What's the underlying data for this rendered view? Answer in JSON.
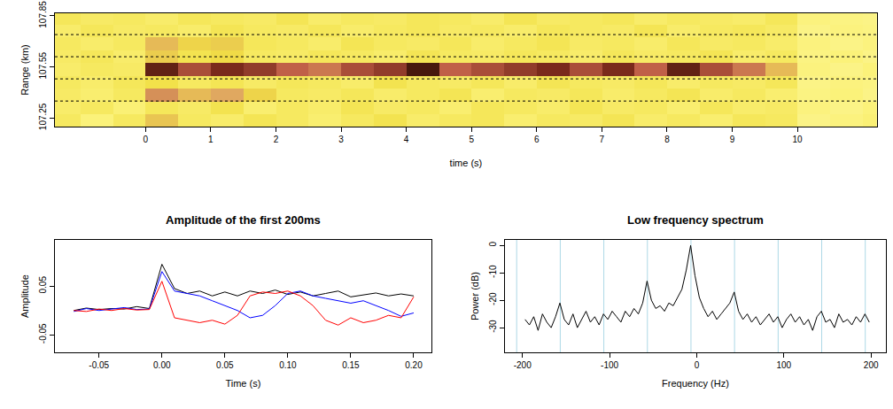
{
  "chart_data": [
    {
      "type": "heatmap",
      "xlabel": "time (s)",
      "ylabel": "Range (km)",
      "x": [
        -1.25,
        -0.75,
        -0.25,
        0.25,
        0.75,
        1.25,
        1.75,
        2.25,
        2.75,
        3.25,
        3.75,
        4.25,
        4.75,
        5.25,
        5.75,
        6.25,
        6.75,
        7.25,
        7.75,
        8.25,
        8.75,
        9.25,
        9.75,
        10.25,
        10.75,
        11.25
      ],
      "y": [
        107.235,
        107.31,
        107.385,
        107.46,
        107.535,
        107.61,
        107.685,
        107.76,
        107.835
      ],
      "cells": [
        [
          0.3,
          0.25,
          0.3,
          0.42,
          0.3,
          0.28,
          0.32,
          0.3,
          0.27,
          0.3,
          0.33,
          0.28,
          0.3,
          0.31,
          0.27,
          0.3,
          0.29,
          0.32,
          0.28,
          0.3,
          0.27,
          0.31,
          0.3,
          0.22,
          0.24,
          0.26
        ],
        [
          0.28,
          0.3,
          0.26,
          0.31,
          0.29,
          0.33,
          0.27,
          0.3,
          0.28,
          0.32,
          0.29,
          0.3,
          0.27,
          0.31,
          0.3,
          0.28,
          0.32,
          0.29,
          0.3,
          0.27,
          0.31,
          0.28,
          0.29,
          0.24,
          0.22,
          0.25
        ],
        [
          0.29,
          0.27,
          0.3,
          0.55,
          0.45,
          0.5,
          0.38,
          0.3,
          0.29,
          0.31,
          0.28,
          0.3,
          0.32,
          0.27,
          0.3,
          0.29,
          0.31,
          0.28,
          0.3,
          0.32,
          0.28,
          0.3,
          0.27,
          0.23,
          0.25,
          0.22
        ],
        [
          0.3,
          0.28,
          0.31,
          0.34,
          0.3,
          0.32,
          0.29,
          0.31,
          0.3,
          0.28,
          0.33,
          0.3,
          0.29,
          0.31,
          0.28,
          0.32,
          0.3,
          0.29,
          0.31,
          0.28,
          0.3,
          0.29,
          0.31,
          0.22,
          0.24,
          0.23
        ],
        [
          0.28,
          0.3,
          0.29,
          0.85,
          0.7,
          0.8,
          0.75,
          0.65,
          0.6,
          0.7,
          0.75,
          0.9,
          0.65,
          0.7,
          0.75,
          0.8,
          0.7,
          0.8,
          0.65,
          0.85,
          0.7,
          0.6,
          0.45,
          0.24,
          0.22,
          0.25
        ],
        [
          0.29,
          0.31,
          0.28,
          0.4,
          0.33,
          0.36,
          0.3,
          0.29,
          0.31,
          0.3,
          0.28,
          0.32,
          0.3,
          0.29,
          0.31,
          0.3,
          0.28,
          0.31,
          0.29,
          0.3,
          0.32,
          0.28,
          0.3,
          0.23,
          0.25,
          0.22
        ],
        [
          0.3,
          0.28,
          0.3,
          0.45,
          0.38,
          0.4,
          0.31,
          0.3,
          0.28,
          0.32,
          0.3,
          0.29,
          0.31,
          0.28,
          0.3,
          0.32,
          0.29,
          0.3,
          0.28,
          0.31,
          0.29,
          0.3,
          0.28,
          0.24,
          0.22,
          0.24
        ],
        [
          0.28,
          0.31,
          0.29,
          0.3,
          0.28,
          0.32,
          0.3,
          0.29,
          0.31,
          0.28,
          0.3,
          0.31,
          0.29,
          0.3,
          0.28,
          0.31,
          0.3,
          0.29,
          0.32,
          0.28,
          0.3,
          0.31,
          0.29,
          0.22,
          0.24,
          0.23
        ],
        [
          0.31,
          0.29,
          0.3,
          0.28,
          0.31,
          0.3,
          0.29,
          0.32,
          0.28,
          0.3,
          0.29,
          0.31,
          0.3,
          0.28,
          0.32,
          0.29,
          0.3,
          0.31,
          0.28,
          0.3,
          0.29,
          0.28,
          0.31,
          0.24,
          0.23,
          0.22
        ]
      ],
      "zlim": [
        0,
        1
      ],
      "xlim": [
        -1.39,
        11.22
      ],
      "ylim": [
        107.2,
        107.865
      ],
      "xticks": [
        0,
        1,
        2,
        3,
        4,
        5,
        6,
        7,
        8,
        9,
        10
      ],
      "yticks": [
        107.25,
        107.55,
        107.85
      ],
      "reference_lines": [
        107.35,
        107.48,
        107.61,
        107.74
      ],
      "grid": false
    },
    {
      "type": "line",
      "title": "Amplitude of the first 200ms",
      "xlabel": "Time (s)",
      "ylabel": "Amplitude",
      "x": [
        -0.07,
        -0.06,
        -0.05,
        -0.04,
        -0.03,
        -0.02,
        -0.01,
        0,
        0.01,
        0.02,
        0.03,
        0.04,
        0.05,
        0.06,
        0.07,
        0.08,
        0.09,
        0.1,
        0.11,
        0.12,
        0.13,
        0.14,
        0.15,
        0.16,
        0.17,
        0.18,
        0.19,
        0.2
      ],
      "series": [
        {
          "color": "#000000",
          "values": [
            0.0,
            0.005,
            0.002,
            0.004,
            0.003,
            0.008,
            0.004,
            0.095,
            0.045,
            0.035,
            0.04,
            0.03,
            0.038,
            0.03,
            0.04,
            0.035,
            0.042,
            0.033,
            0.038,
            0.03,
            0.035,
            0.04,
            0.028,
            0.032,
            0.036,
            0.03,
            0.034,
            0.03
          ]
        },
        {
          "color": "#0000ff",
          "values": [
            -0.002,
            0.004,
            0.0,
            0.003,
            0.006,
            0.002,
            0.003,
            0.08,
            0.04,
            0.035,
            0.03,
            0.02,
            0.01,
            0.0,
            -0.015,
            -0.01,
            0.01,
            0.035,
            0.04,
            0.03,
            0.025,
            0.02,
            0.015,
            0.02,
            0.01,
            0.0,
            -0.012,
            -0.005
          ]
        },
        {
          "color": "#ff0000",
          "values": [
            0.0,
            -0.002,
            0.003,
            0.0,
            0.004,
            0.001,
            0.002,
            0.06,
            -0.015,
            -0.02,
            -0.025,
            -0.02,
            -0.028,
            -0.01,
            0.03,
            0.038,
            0.035,
            0.04,
            0.03,
            0.01,
            -0.02,
            -0.03,
            -0.015,
            -0.025,
            -0.02,
            -0.01,
            -0.015,
            0.028
          ]
        }
      ],
      "xlim": [
        -0.085,
        0.214
      ],
      "ylim": [
        -0.086,
        0.145
      ],
      "xticks": [
        -0.05,
        {
          "value": 0,
          "label": "0.00"
        },
        0.05,
        {
          "value": 0.1,
          "label": "0.10"
        },
        0.15,
        {
          "value": 0.2,
          "label": "0.20"
        }
      ],
      "yticks": [
        -0.05,
        0.05
      ],
      "grid": false
    },
    {
      "type": "line",
      "title": "Low frequency spectrum",
      "xlabel": "Frequency (Hz)",
      "ylabel": "Power (dB)",
      "x": [
        -197,
        -192,
        -187,
        -182,
        -177,
        -172,
        -167,
        -162,
        -157,
        -152,
        -147,
        -142,
        -137,
        -132,
        -127,
        -122,
        -117,
        -112,
        -107,
        -102,
        -97,
        -92,
        -87,
        -82,
        -77,
        -72,
        -67,
        -62,
        -57,
        -52,
        -47,
        -42,
        -37,
        -32,
        -27,
        -22,
        -17,
        -12,
        -7,
        -2,
        3,
        8,
        13,
        18,
        23,
        28,
        33,
        38,
        43,
        48,
        53,
        58,
        63,
        68,
        73,
        78,
        83,
        88,
        93,
        98,
        103,
        108,
        113,
        118,
        123,
        128,
        133,
        138,
        143,
        148,
        153,
        158,
        163,
        168,
        173,
        178,
        183,
        188,
        193,
        198
      ],
      "series": [
        {
          "color": "#000000",
          "values": [
            -27,
            -29,
            -26,
            -31,
            -25,
            -28,
            -30,
            -26,
            -21,
            -27,
            -29,
            -25,
            -30,
            -27,
            -24,
            -28,
            -26,
            -29,
            -25,
            -27,
            -24,
            -26,
            -28,
            -24,
            -26,
            -23,
            -25,
            -21,
            -13,
            -20,
            -23,
            -22,
            -24,
            -21,
            -22,
            -19,
            -16,
            -9,
            0,
            -11,
            -19,
            -23,
            -26,
            -24,
            -27,
            -25,
            -23,
            -21,
            -17,
            -24,
            -27,
            -25,
            -28,
            -26,
            -29,
            -27,
            -25,
            -28,
            -26,
            -30,
            -27,
            -25,
            -28,
            -26,
            -29,
            -27,
            -31,
            -26,
            -24,
            -28,
            -27,
            -30,
            -25,
            -28,
            -27,
            -29,
            -26,
            -28,
            -25,
            -28
          ]
        }
      ],
      "xlim": [
        -220,
        217
      ],
      "ylim": [
        -39,
        2
      ],
      "xticks": [
        -200,
        -100,
        0,
        100,
        200
      ],
      "yticks": [
        -30,
        -20,
        -10,
        0
      ],
      "reference_lines": [
        -206.6,
        -156.6,
        -106.6,
        -56.6,
        -6.6,
        43.4,
        93.4,
        143.4,
        193.4
      ],
      "grid": false
    }
  ]
}
